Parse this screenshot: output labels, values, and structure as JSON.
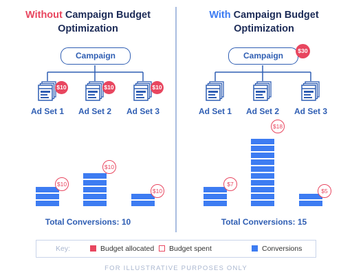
{
  "left_panel": {
    "title_prefix": "Without",
    "title_rest": " Campaign Budget",
    "title_line2": "Optimization",
    "campaign_label": "Campaign",
    "ad_sets": [
      {
        "label": "Ad Set 1",
        "budget": "$10",
        "spent": "$10",
        "conversions": 3
      },
      {
        "label": "Ad Set 2",
        "budget": "$10",
        "spent": "$10",
        "conversions": 5
      },
      {
        "label": "Ad Set 3",
        "budget": "$10",
        "spent": "$10",
        "conversions": 2
      }
    ],
    "total_conversions": "Total Conversions: 10"
  },
  "right_panel": {
    "title_prefix": "With",
    "title_rest": " Campaign Budget",
    "title_line2": "Optimization",
    "campaign_label": "Campaign",
    "campaign_budget": "$30",
    "ad_sets": [
      {
        "label": "Ad Set 1",
        "spent": "$7",
        "conversions": 3
      },
      {
        "label": "Ad Set 2",
        "spent": "$18",
        "conversions": 10
      },
      {
        "label": "Ad Set 3",
        "spent": "$5",
        "conversions": 2
      }
    ],
    "total_conversions": "Total Conversions: 15"
  },
  "key": {
    "label": "Key:",
    "budget_allocated": "Budget allocated",
    "budget_spent": "Budget spent",
    "conversions": "Conversions"
  },
  "footer": "FOR ILLUSTRATIVE PURPOSES ONLY",
  "colors": {
    "accent_red": "#e8465f",
    "accent_blue": "#3d7cf2",
    "navy": "#1c2b57",
    "line_blue": "#2f5eb3"
  }
}
